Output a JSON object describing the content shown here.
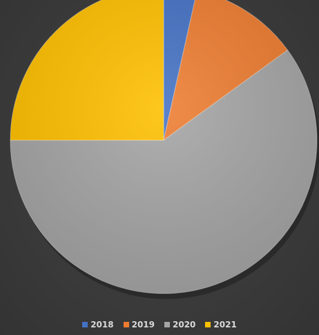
{
  "chart_data": {
    "type": "pie",
    "title": "",
    "start_angle_deg": 0,
    "direction": "clockwise",
    "slices": [
      {
        "label": "2018",
        "value": 3.5,
        "color": "#4472c4"
      },
      {
        "label": "2019",
        "value": 11.5,
        "color": "#ed7d31"
      },
      {
        "label": "2020",
        "value": 60,
        "color": "#a5a5a5"
      },
      {
        "label": "2021",
        "value": 25,
        "color": "#ffc000"
      }
    ],
    "legend": {
      "position": "bottom",
      "items": [
        "2018",
        "2019",
        "2020",
        "2021"
      ]
    },
    "data_labels": false
  }
}
